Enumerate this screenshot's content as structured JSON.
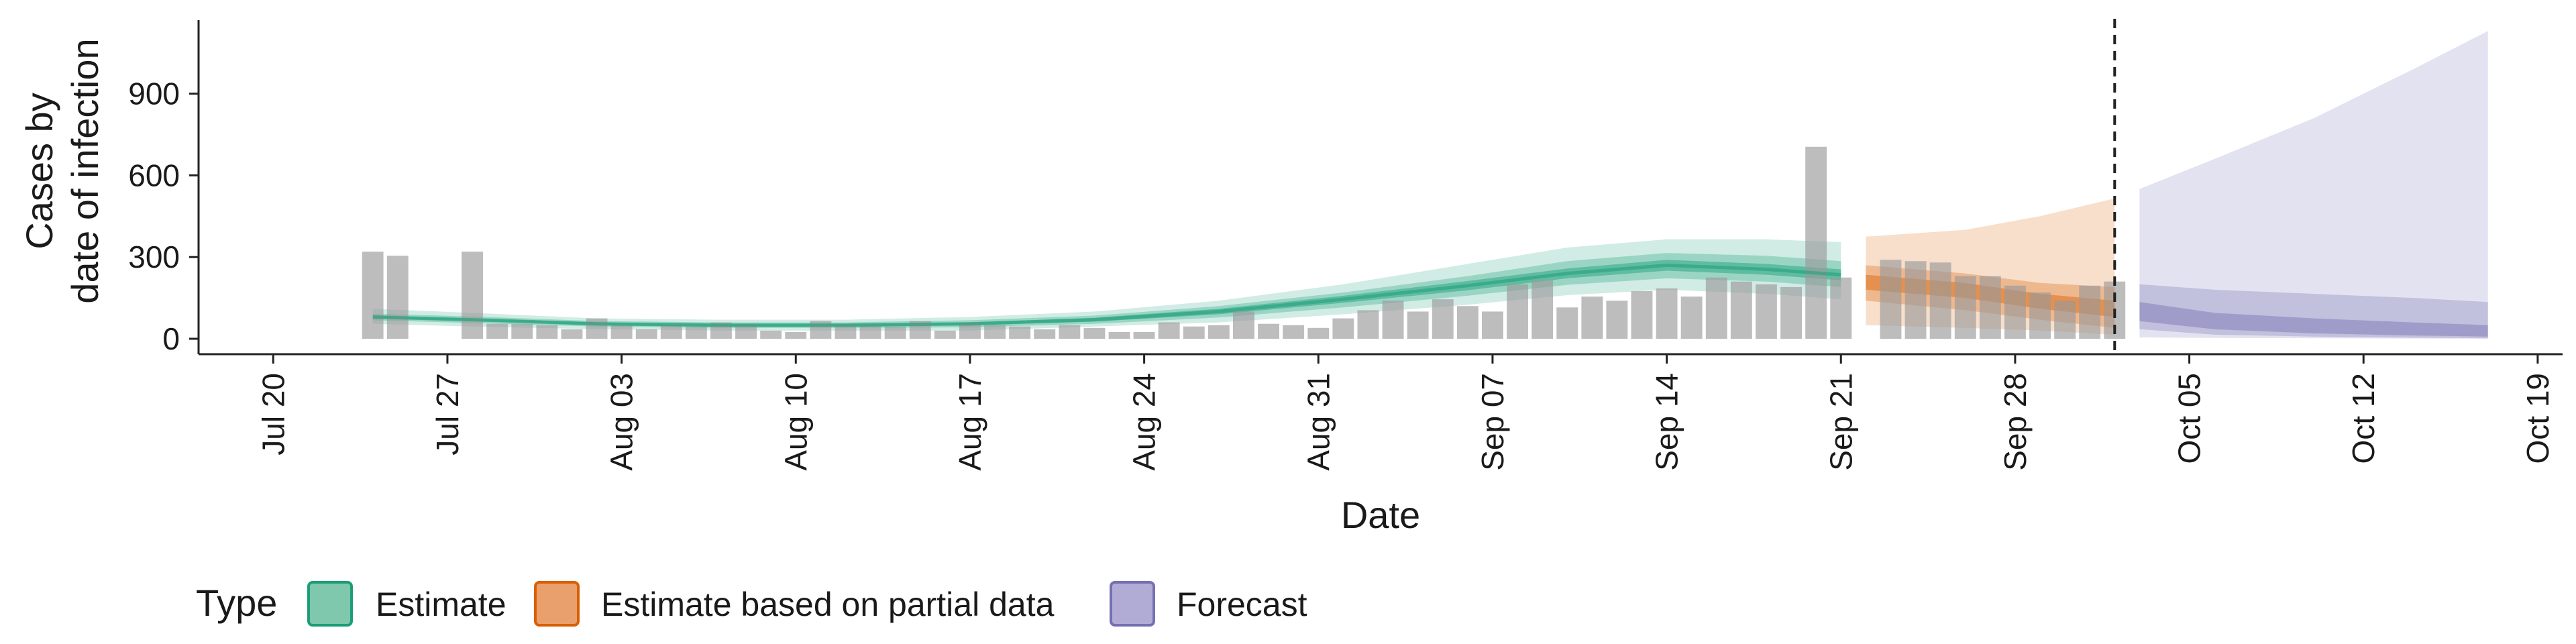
{
  "chart_data": {
    "type": "area",
    "ylabel": [
      "Cases by",
      "date of infection"
    ],
    "xlabel": "Date",
    "x_range": [
      "2020-07-17",
      "2020-10-20"
    ],
    "ylim": [
      0,
      1170
    ],
    "yticks": [
      0,
      300,
      600,
      900
    ],
    "xticks": [
      {
        "date": "2020-07-20",
        "label": "Jul 20"
      },
      {
        "date": "2020-07-27",
        "label": "Jul 27"
      },
      {
        "date": "2020-08-03",
        "label": "Aug 03"
      },
      {
        "date": "2020-08-10",
        "label": "Aug 10"
      },
      {
        "date": "2020-08-17",
        "label": "Aug 17"
      },
      {
        "date": "2020-08-24",
        "label": "Aug 24"
      },
      {
        "date": "2020-08-31",
        "label": "Aug 31"
      },
      {
        "date": "2020-09-07",
        "label": "Sep 07"
      },
      {
        "date": "2020-09-14",
        "label": "Sep 14"
      },
      {
        "date": "2020-09-21",
        "label": "Sep 21"
      },
      {
        "date": "2020-09-28",
        "label": "Sep 28"
      },
      {
        "date": "2020-10-05",
        "label": "Oct 05"
      },
      {
        "date": "2020-10-12",
        "label": "Oct 12"
      },
      {
        "date": "2020-10-19",
        "label": "Oct 19"
      }
    ],
    "reference_line": {
      "date": "2020-10-02",
      "style": "dashed"
    },
    "reported_cases": {
      "start_date": "2020-07-24",
      "values": [
        320,
        305,
        0,
        0,
        320,
        55,
        55,
        50,
        35,
        75,
        50,
        35,
        50,
        45,
        60,
        55,
        30,
        25,
        65,
        55,
        50,
        45,
        65,
        30,
        60,
        50,
        45,
        35,
        50,
        40,
        25,
        25,
        60,
        45,
        50,
        100,
        55,
        50,
        40,
        75,
        105,
        140,
        100,
        145,
        120,
        100,
        200,
        215,
        115,
        155,
        140,
        175,
        185,
        155,
        225,
        210,
        200,
        190,
        705,
        225,
        0,
        290,
        285,
        280,
        230,
        230,
        195,
        170,
        140,
        195,
        210
      ]
    },
    "legend": {
      "title": "Type",
      "position": "bottom-left",
      "items": [
        {
          "label": "Estimate",
          "fill": "#7fc7ad",
          "stroke": "#1b9e77"
        },
        {
          "label": "Estimate based on partial data",
          "fill": "#e9a06d",
          "stroke": "#d95f02"
        },
        {
          "label": "Forecast",
          "fill": "#b0acd6",
          "stroke": "#7570b3"
        }
      ]
    },
    "series": [
      {
        "name": "Estimate",
        "color": "#1b9e77",
        "dates": [
          "2020-07-24",
          "2020-07-28",
          "2020-08-02",
          "2020-08-07",
          "2020-08-12",
          "2020-08-17",
          "2020-08-22",
          "2020-08-27",
          "2020-09-01",
          "2020-09-06",
          "2020-09-10",
          "2020-09-14",
          "2020-09-18",
          "2020-09-21"
        ],
        "median": [
          80,
          70,
          55,
          50,
          50,
          55,
          70,
          100,
          145,
          195,
          240,
          270,
          255,
          235
        ],
        "band_90": [
          [
            55,
            110
          ],
          [
            45,
            95
          ],
          [
            35,
            75
          ],
          [
            30,
            70
          ],
          [
            30,
            70
          ],
          [
            30,
            80
          ],
          [
            45,
            100
          ],
          [
            60,
            140
          ],
          [
            90,
            200
          ],
          [
            125,
            275
          ],
          [
            160,
            335
          ],
          [
            180,
            365
          ],
          [
            165,
            365
          ],
          [
            145,
            355
          ]
        ],
        "band_50": [
          [
            68,
            92
          ],
          [
            58,
            82
          ],
          [
            45,
            65
          ],
          [
            40,
            60
          ],
          [
            40,
            60
          ],
          [
            42,
            68
          ],
          [
            55,
            85
          ],
          [
            78,
            120
          ],
          [
            115,
            170
          ],
          [
            158,
            230
          ],
          [
            198,
            285
          ],
          [
            222,
            315
          ],
          [
            210,
            305
          ],
          [
            190,
            285
          ]
        ],
        "band_20": [
          [
            75,
            85
          ],
          [
            65,
            75
          ],
          [
            50,
            60
          ],
          [
            45,
            55
          ],
          [
            45,
            55
          ],
          [
            50,
            60
          ],
          [
            63,
            77
          ],
          [
            90,
            110
          ],
          [
            132,
            158
          ],
          [
            178,
            212
          ],
          [
            222,
            258
          ],
          [
            250,
            290
          ],
          [
            235,
            275
          ],
          [
            215,
            255
          ]
        ]
      },
      {
        "name": "Estimate based on partial data",
        "color": "#d95f02",
        "dates": [
          "2020-09-22",
          "2020-09-26",
          "2020-09-29",
          "2020-10-02"
        ],
        "band_90": [
          [
            50,
            375
          ],
          [
            40,
            400
          ],
          [
            30,
            450
          ],
          [
            15,
            515
          ]
        ],
        "band_50": [
          [
            140,
            270
          ],
          [
            105,
            240
          ],
          [
            70,
            205
          ],
          [
            40,
            190
          ]
        ],
        "band_20": [
          [
            180,
            235
          ],
          [
            150,
            205
          ],
          [
            110,
            165
          ],
          [
            80,
            140
          ]
        ]
      },
      {
        "name": "Forecast",
        "color": "#7570b3",
        "dates": [
          "2020-10-03",
          "2020-10-06",
          "2020-10-10",
          "2020-10-14",
          "2020-10-17"
        ],
        "band_90": [
          [
            5,
            550
          ],
          [
            3,
            660
          ],
          [
            2,
            810
          ],
          [
            1,
            990
          ],
          [
            0,
            1130
          ]
        ],
        "band_50": [
          [
            35,
            200
          ],
          [
            15,
            180
          ],
          [
            8,
            165
          ],
          [
            4,
            150
          ],
          [
            2,
            135
          ]
        ],
        "band_20": [
          [
            65,
            135
          ],
          [
            35,
            95
          ],
          [
            20,
            75
          ],
          [
            12,
            60
          ],
          [
            8,
            50
          ]
        ]
      }
    ]
  }
}
